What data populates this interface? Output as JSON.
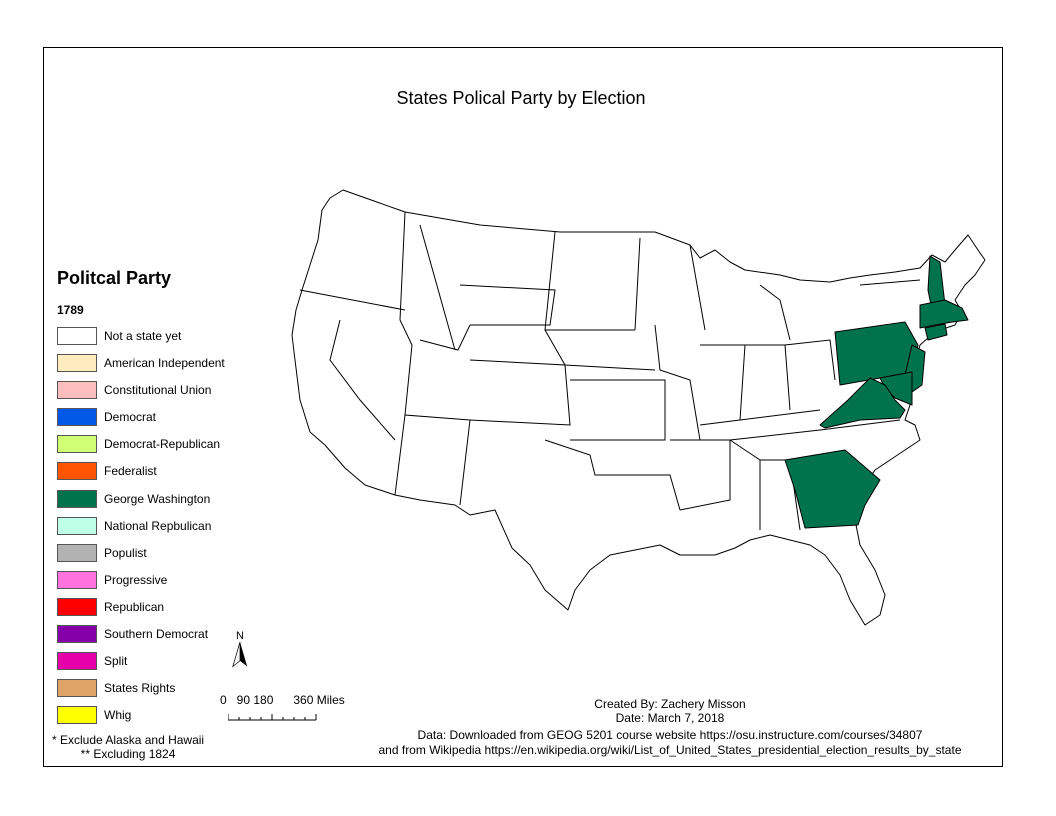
{
  "title": "States Polical Party by Election",
  "legend": {
    "title": "Politcal Party",
    "year": "1789",
    "items": [
      {
        "label": "Not a state yet",
        "color": "#ffffff"
      },
      {
        "label": "American Independent",
        "color": "#ffebbe"
      },
      {
        "label": "Constitutional Union",
        "color": "#ffbebe"
      },
      {
        "label": "Democrat",
        "color": "#0058e6"
      },
      {
        "label": "Democrat-Republican",
        "color": "#d1ff73"
      },
      {
        "label": "Federalist",
        "color": "#ff5500"
      },
      {
        "label": "George Washington",
        "color": "#00734c"
      },
      {
        "label": "National Repbulican",
        "color": "#bfffe8"
      },
      {
        "label": "Populist",
        "color": "#b2b2b2"
      },
      {
        "label": "Progressive",
        "color": "#ff73df"
      },
      {
        "label": "Republican",
        "color": "#ff0000"
      },
      {
        "label": "Southern Democrat",
        "color": "#8400a8"
      },
      {
        "label": "Split",
        "color": "#e600a9"
      },
      {
        "label": "States Rights",
        "color": "#e1a467"
      },
      {
        "label": "Whig",
        "color": "#ffff00"
      }
    ]
  },
  "notes": {
    "line1": "* Exclude Alaska and Hawaii",
    "line2": "** Excluding 1824"
  },
  "north_arrow": {
    "label": "N",
    "icon": "north-arrow-icon"
  },
  "scale_bar": {
    "label": "0   90 180      360 Miles"
  },
  "credits": {
    "created_by": "Created By: Zachery Misson",
    "date": "Date: March 7, 2018"
  },
  "source": {
    "line1": "Data: Downloaded from GEOG 5201 course website https://osu.instructure.com/courses/34807",
    "line2": "and from Wikipedia https://en.wikipedia.org/wiki/List_of_United_States_presidential_election_results_by_state"
  },
  "map": {
    "highlighted_party": "George Washington",
    "highlighted_states": [
      "New Hampshire",
      "Massachusetts",
      "Connecticut",
      "New Jersey",
      "Pennsylvania",
      "Delaware",
      "Maryland",
      "Virginia",
      "Georgia"
    ]
  }
}
